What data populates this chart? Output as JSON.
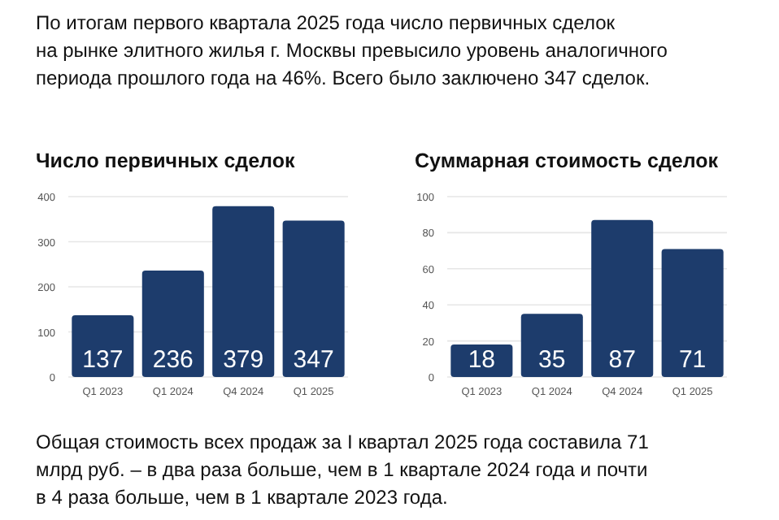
{
  "chart_data": [
    {
      "type": "bar",
      "title": "Число первичных сделок",
      "categories": [
        "Q1 2023",
        "Q1 2024",
        "Q4 2024",
        "Q1 2025"
      ],
      "values": [
        137,
        236,
        379,
        347
      ],
      "color": "#1d3c6c",
      "ylim": [
        0,
        400
      ],
      "yticks": [
        0,
        100,
        200,
        300,
        400
      ],
      "grid": "y",
      "data_labels": true,
      "annotations": [
        "По итогам первого квартала 2025 года число первичных сделок",
        "на рынке элитного жилья г. Москвы превысило уровень аналогичного",
        "периода прошлого года на 46%. Всего было заключено 347 сделок."
      ]
    },
    {
      "type": "bar",
      "title": "Суммарная стоимость сделок",
      "categories": [
        "Q1 2023",
        "Q1 2024",
        "Q4 2024",
        "Q1 2025"
      ],
      "values": [
        18,
        35,
        87,
        71
      ],
      "color": "#1d3c6c",
      "ylim": [
        0,
        100
      ],
      "yticks": [
        0,
        20,
        40,
        60,
        80,
        100
      ],
      "grid": "y",
      "data_labels": true,
      "annotations": [
        "Общая стоимость всех продаж за I квартал 2025 года составила 71",
        "млрд руб. – в два раза больше, чем в 1 квартале 2024 года и почти",
        "в 4 раза больше, чем в 1 квартале 2023 года."
      ]
    }
  ]
}
